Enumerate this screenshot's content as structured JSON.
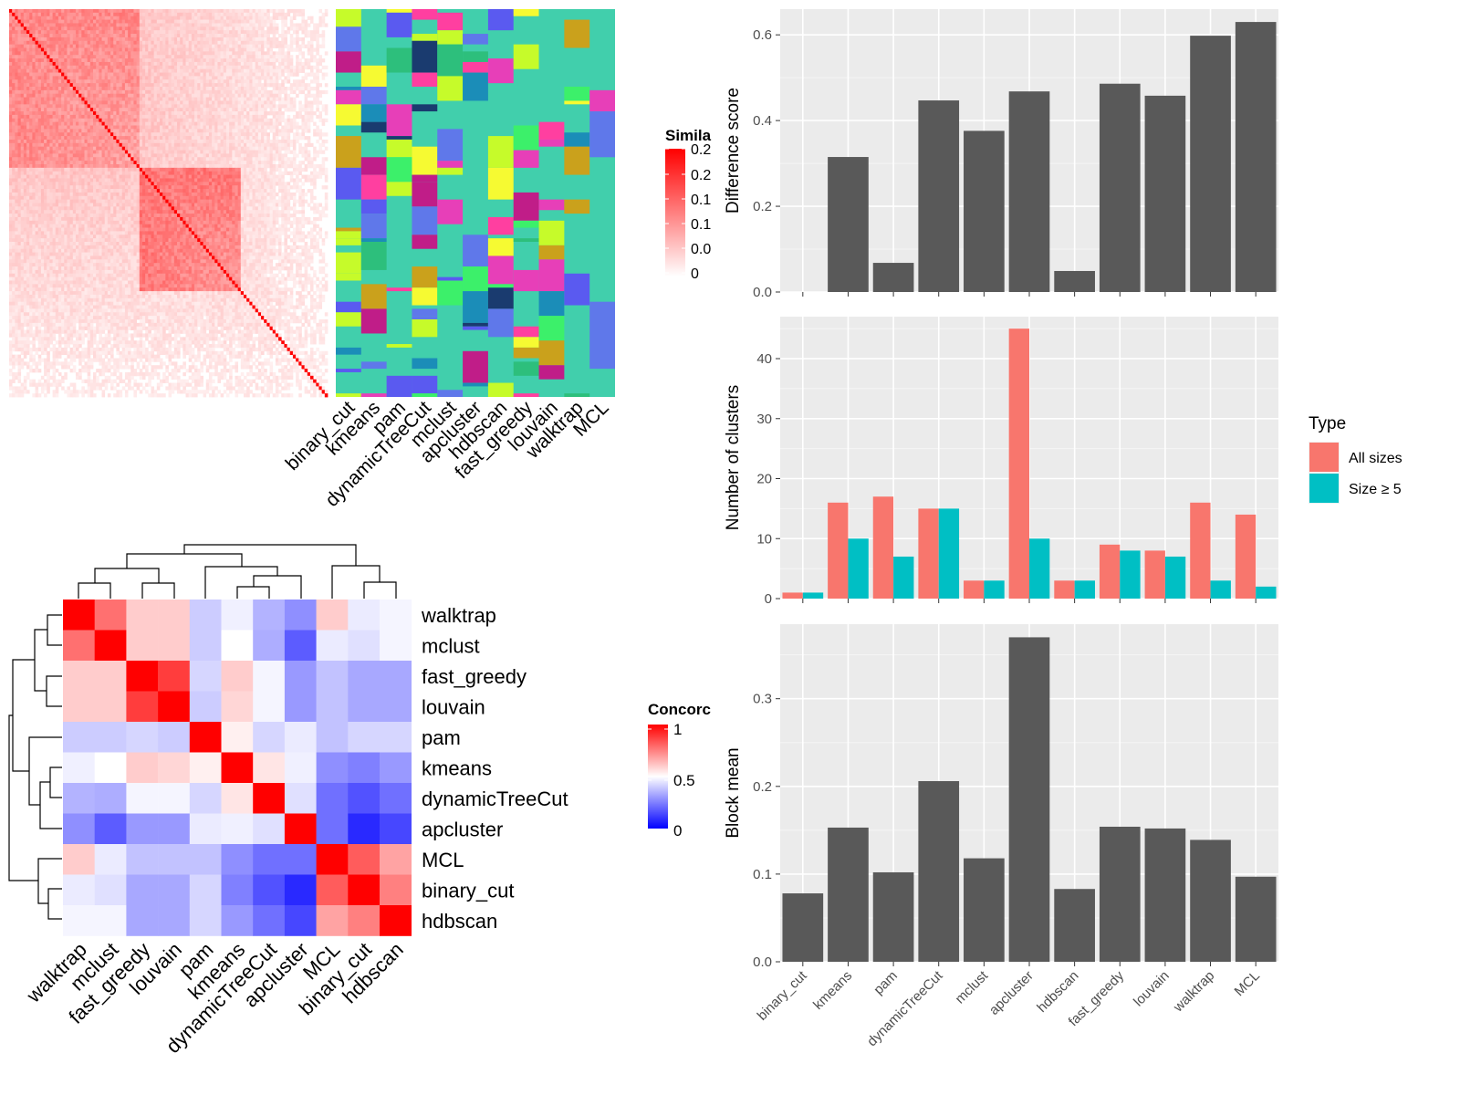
{
  "chart_data": [
    {
      "id": "similarity-heatmap",
      "type": "heatmap",
      "description_free": true,
      "column_labels": [
        "binary_cut",
        "kmeans",
        "pam",
        "dynamicTreeCut",
        "mclust",
        "apcluster",
        "hdbscan",
        "fast_greedy",
        "louvain",
        "walktrap",
        "MCL"
      ],
      "legend": {
        "title": "Simila",
        "tick_labels": [
          "0.2",
          "0.2",
          "0.1",
          "0.1",
          "0.0",
          "0"
        ],
        "colors": [
          "#ffffff",
          "#ff0000"
        ]
      },
      "block_colors": {
        "base": "#41cfac",
        "palette": [
          "#e73fb8",
          "#ff3fa0",
          "#5f78ea",
          "#c6fb2a",
          "#1a3b6f",
          "#1b8db8",
          "#3cf06a",
          "#caa11c",
          "#c01d88",
          "#f6fa32",
          "#5a5af0",
          "#2dbf7c"
        ]
      }
    },
    {
      "id": "concordance-heatmap",
      "type": "heatmap",
      "row_labels": [
        "walktrap",
        "mclust",
        "fast_greedy",
        "louvain",
        "pam",
        "kmeans",
        "dynamicTreeCut",
        "apcluster",
        "MCL",
        "binary_cut",
        "hdbscan"
      ],
      "column_labels": [
        "walktrap",
        "mclust",
        "fast_greedy",
        "louvain",
        "pam",
        "kmeans",
        "dynamicTreeCut",
        "apcluster",
        "MCL",
        "binary_cut",
        "hdbscan"
      ],
      "values": [
        [
          1.0,
          0.78,
          0.6,
          0.6,
          0.4,
          0.47,
          0.35,
          0.28,
          0.6,
          0.46,
          0.48
        ],
        [
          0.78,
          1.0,
          0.6,
          0.6,
          0.4,
          0.5,
          0.34,
          0.18,
          0.46,
          0.44,
          0.48
        ],
        [
          0.6,
          0.6,
          1.0,
          0.88,
          0.42,
          0.6,
          0.48,
          0.3,
          0.38,
          0.33,
          0.33
        ],
        [
          0.6,
          0.6,
          0.88,
          1.0,
          0.4,
          0.58,
          0.48,
          0.3,
          0.38,
          0.33,
          0.33
        ],
        [
          0.4,
          0.4,
          0.42,
          0.4,
          1.0,
          0.53,
          0.42,
          0.46,
          0.38,
          0.42,
          0.42
        ],
        [
          0.47,
          0.5,
          0.6,
          0.58,
          0.53,
          1.0,
          0.55,
          0.47,
          0.28,
          0.25,
          0.3
        ],
        [
          0.35,
          0.34,
          0.48,
          0.48,
          0.42,
          0.55,
          1.0,
          0.44,
          0.22,
          0.16,
          0.22
        ],
        [
          0.28,
          0.18,
          0.3,
          0.3,
          0.46,
          0.47,
          0.44,
          1.0,
          0.22,
          0.08,
          0.14
        ],
        [
          0.6,
          0.46,
          0.38,
          0.38,
          0.38,
          0.28,
          0.22,
          0.22,
          1.0,
          0.82,
          0.68
        ],
        [
          0.46,
          0.44,
          0.33,
          0.33,
          0.42,
          0.25,
          0.16,
          0.08,
          0.82,
          1.0,
          0.75
        ],
        [
          0.48,
          0.48,
          0.33,
          0.33,
          0.42,
          0.3,
          0.22,
          0.14,
          0.68,
          0.75,
          1.0
        ]
      ],
      "legend": {
        "title": "Concorc",
        "tick_labels": [
          "1",
          "0.5",
          "0"
        ],
        "colors": [
          "#0000ff",
          "#ffffff",
          "#ff0000"
        ]
      }
    },
    {
      "id": "difference-score-bars",
      "type": "bar",
      "categories": [
        "binary_cut",
        "kmeans",
        "pam",
        "dynamicTreeCut",
        "mclust",
        "apcluster",
        "hdbscan",
        "fast_greedy",
        "louvain",
        "walktrap",
        "MCL"
      ],
      "values": [
        0,
        0.315,
        0.068,
        0.447,
        0.376,
        0.468,
        0.049,
        0.486,
        0.458,
        0.598,
        0.63
      ],
      "ylabel": "Difference score",
      "ylim": [
        0,
        0.66
      ],
      "yticks": [
        "0.0",
        "0.2",
        "0.4",
        "0.6"
      ],
      "bar_color": "#595959",
      "grid": true
    },
    {
      "id": "number-of-clusters-bars",
      "type": "bar",
      "categories": [
        "binary_cut",
        "kmeans",
        "pam",
        "dynamicTreeCut",
        "mclust",
        "apcluster",
        "hdbscan",
        "fast_greedy",
        "louvain",
        "walktrap",
        "MCL"
      ],
      "series": [
        {
          "name": "All sizes",
          "values": [
            1,
            16,
            17,
            15,
            3,
            45,
            3,
            9,
            8,
            16,
            14
          ],
          "color": "#f8766d"
        },
        {
          "name": "Size ≥ 5",
          "values": [
            1,
            10,
            7,
            15,
            3,
            10,
            3,
            8,
            7,
            3,
            2
          ],
          "color": "#00bfc4"
        }
      ],
      "ylabel": "Number of clusters",
      "ylim": [
        0,
        47
      ],
      "yticks": [
        "0",
        "10",
        "20",
        "30",
        "40"
      ],
      "legend": {
        "title": "Type",
        "placement": "right"
      },
      "grid": true
    },
    {
      "id": "block-mean-bars",
      "type": "bar",
      "categories": [
        "binary_cut",
        "kmeans",
        "pam",
        "dynamicTreeCut",
        "mclust",
        "apcluster",
        "hdbscan",
        "fast_greedy",
        "louvain",
        "walktrap",
        "MCL"
      ],
      "values": [
        0.078,
        0.153,
        0.102,
        0.206,
        0.118,
        0.37,
        0.083,
        0.154,
        0.152,
        0.139,
        0.097
      ],
      "ylabel": "Block mean",
      "ylim": [
        0,
        0.385
      ],
      "yticks": [
        "0.0",
        "0.1",
        "0.2",
        "0.3"
      ],
      "bar_color": "#595959",
      "grid": true
    }
  ]
}
